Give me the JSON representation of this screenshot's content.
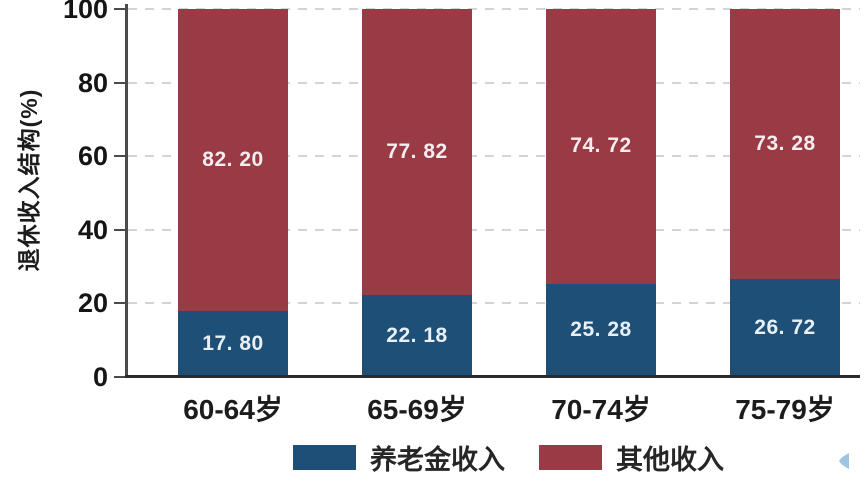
{
  "chart_data": {
    "type": "bar",
    "stacked": true,
    "orientation": "vertical",
    "categories": [
      "60-64岁",
      "65-69岁",
      "70-74岁",
      "75-79岁"
    ],
    "series": [
      {
        "name": "养老金收入",
        "color": "#1E4F77",
        "values": [
          17.8,
          22.18,
          25.28,
          26.72
        ],
        "labels": [
          "17. 80",
          "22. 18",
          "25. 28",
          "26. 72"
        ],
        "label_color": "#E8F0F7"
      },
      {
        "name": "其他收入",
        "color": "#9A3A45",
        "values": [
          82.2,
          77.82,
          74.72,
          73.28
        ],
        "labels": [
          "82. 20",
          "77. 82",
          "74. 72",
          "73. 28"
        ],
        "label_color": "#F3EDEF"
      }
    ],
    "title": "",
    "xlabel": "",
    "ylabel": "退休收入结构(%)",
    "ylim": [
      0,
      100
    ],
    "yticks": [
      0,
      20,
      40,
      60,
      80,
      100
    ],
    "grid": "horizontal-dotted",
    "legend_position": "bottom-center"
  },
  "style_colors": {
    "background": "#ffffff",
    "axis_line": "#4b4b4b",
    "baseline": "#2b2b2b",
    "gridline": "#d4d4d4",
    "tick_text": "#151515",
    "category_text": "#1c1c1c",
    "legend_text": "#262626",
    "watermark": "#8fbcdb"
  }
}
